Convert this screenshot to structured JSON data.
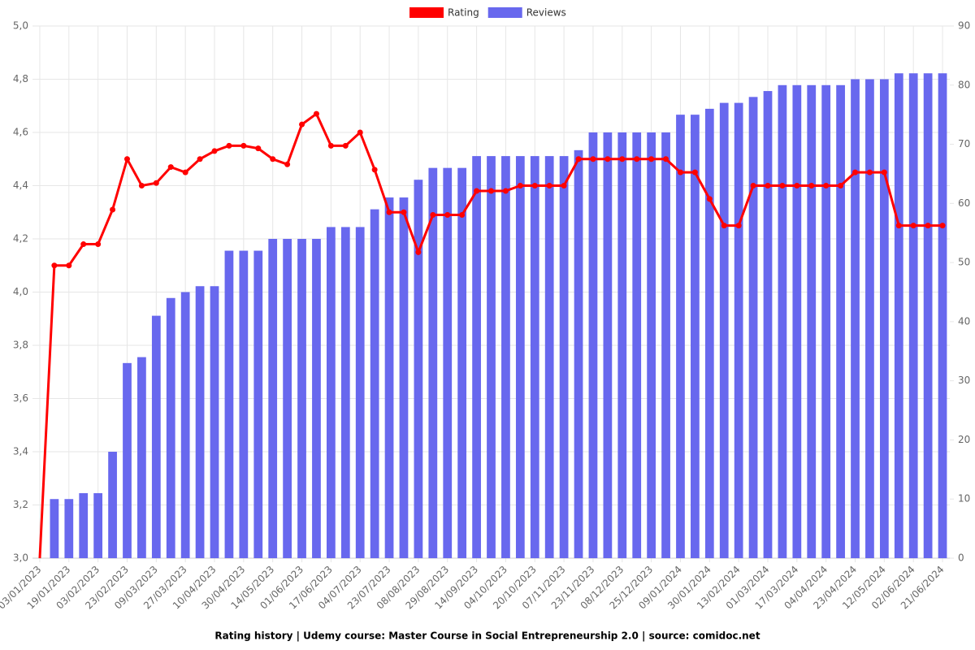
{
  "chart_data": {
    "type": "combo",
    "title": "Rating history | Udemy course: Master Course in Social Entrepreneurship 2.0 | source: comidoc.net",
    "categories": [
      "03/01/2023",
      null,
      "19/01/2023",
      null,
      "03/02/2023",
      null,
      "23/02/2023",
      null,
      "09/03/2023",
      null,
      "27/03/2023",
      null,
      "10/04/2023",
      null,
      "30/04/2023",
      null,
      "14/05/2023",
      null,
      "01/06/2023",
      null,
      "17/06/2023",
      null,
      "04/07/2023",
      null,
      "23/07/2023",
      null,
      "08/08/2023",
      null,
      "29/08/2023",
      null,
      "14/09/2023",
      null,
      "04/10/2023",
      null,
      "20/10/2023",
      null,
      "07/11/2023",
      null,
      "23/11/2023",
      null,
      "08/12/2023",
      null,
      "25/12/2023",
      null,
      "09/01/2024",
      null,
      "30/01/2024",
      null,
      "13/02/2024",
      null,
      "01/03/2024",
      null,
      "17/03/2024",
      null,
      "04/04/2024",
      null,
      "23/04/2024",
      null,
      "12/05/2024",
      null,
      "02/06/2024",
      null,
      "21/06/2024"
    ],
    "series": [
      {
        "name": "Rating",
        "color": "#ff0000",
        "type": "line",
        "values": [
          3.0,
          4.1,
          4.1,
          4.18,
          4.18,
          4.31,
          4.5,
          4.4,
          4.41,
          4.47,
          4.45,
          4.5,
          4.53,
          4.55,
          4.55,
          4.54,
          4.5,
          4.48,
          4.63,
          4.67,
          4.55,
          4.55,
          4.6,
          4.46,
          4.3,
          4.3,
          4.15,
          4.29,
          4.29,
          4.29,
          4.38,
          4.38,
          4.38,
          4.4,
          4.4,
          4.4,
          4.4,
          4.5,
          4.5,
          4.5,
          4.5,
          4.5,
          4.5,
          4.5,
          4.45,
          4.45,
          4.35,
          4.25,
          4.25,
          4.4,
          4.4,
          4.4,
          4.4,
          4.4,
          4.4,
          4.4,
          4.45,
          4.45,
          4.45,
          4.25,
          4.25,
          4.25,
          4.25
        ]
      },
      {
        "name": "Reviews",
        "color": "#6868ee",
        "type": "bar",
        "axis": "y2",
        "values": [
          0,
          10,
          10,
          11,
          11,
          18,
          33,
          34,
          41,
          44,
          45,
          46,
          46,
          52,
          52,
          52,
          54,
          54,
          54,
          54,
          56,
          56,
          56,
          59,
          61,
          61,
          64,
          66,
          66,
          66,
          68,
          68,
          68,
          68,
          68,
          68,
          68,
          69,
          72,
          72,
          72,
          72,
          72,
          72,
          75,
          75,
          76,
          77,
          77,
          78,
          79,
          80,
          80,
          80,
          80,
          80,
          81,
          81,
          81,
          82,
          82,
          82,
          82
        ]
      }
    ],
    "ylim": [
      3,
      5
    ],
    "yticks": [
      {
        "value": 3,
        "label": "3,0"
      },
      {
        "value": 3.2,
        "label": "3,2"
      },
      {
        "value": 3.4,
        "label": "3,4"
      },
      {
        "value": 3.6,
        "label": "3,6"
      },
      {
        "value": 3.8,
        "label": "3,8"
      },
      {
        "value": 4,
        "label": "4,0"
      },
      {
        "value": 4.2,
        "label": "4,2"
      },
      {
        "value": 4.4,
        "label": "4,4"
      },
      {
        "value": 4.6,
        "label": "4,6"
      },
      {
        "value": 4.8,
        "label": "4,8"
      },
      {
        "value": 5,
        "label": "5,0"
      }
    ],
    "y2lim": [
      0,
      90
    ],
    "y2ticks": [
      0,
      10,
      20,
      30,
      40,
      50,
      60,
      70,
      80,
      90
    ],
    "grid": true
  }
}
